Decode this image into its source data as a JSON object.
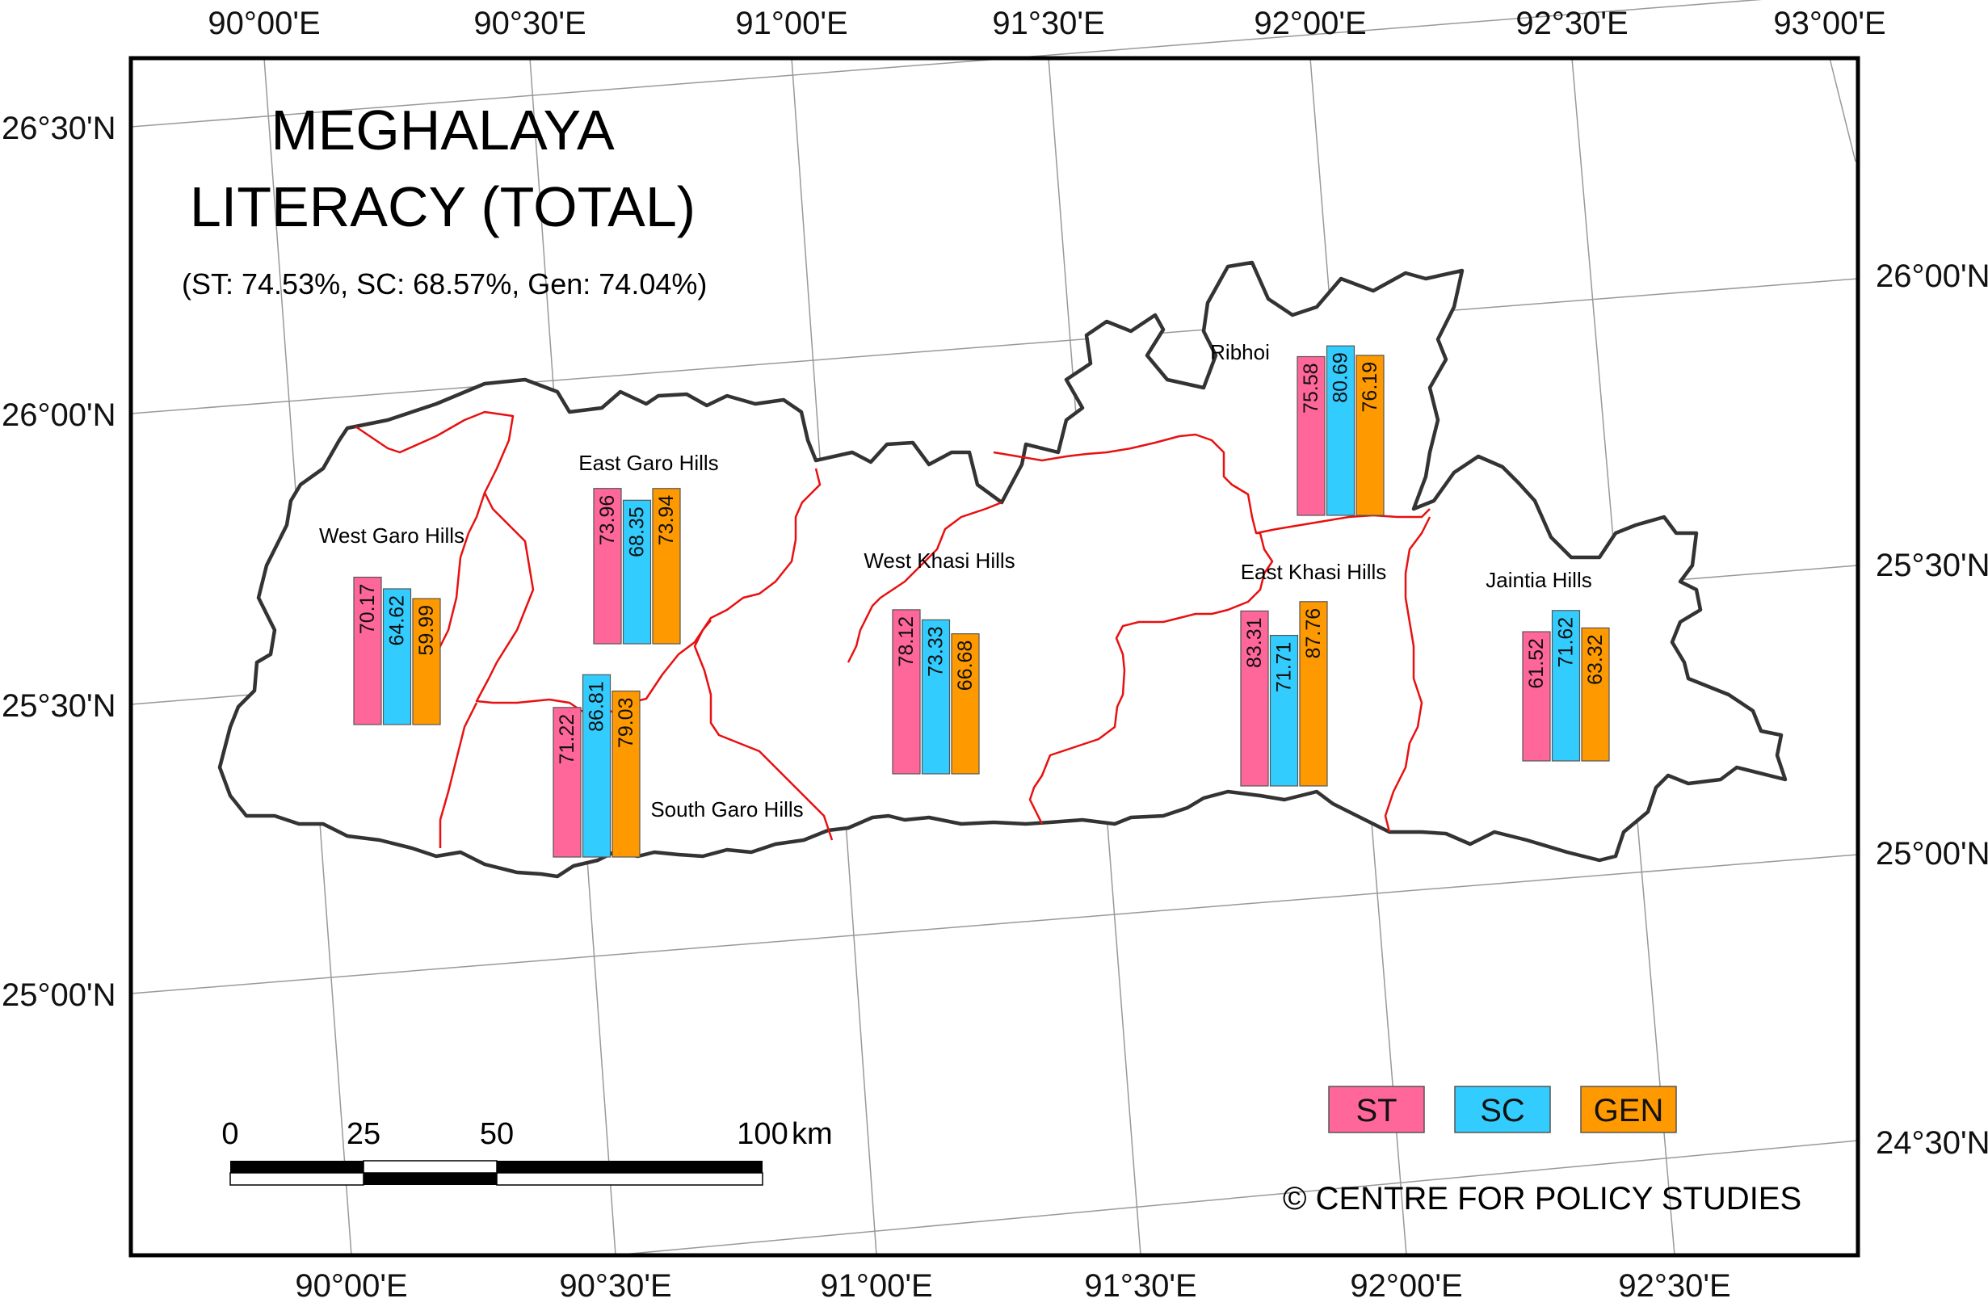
{
  "map": {
    "title_line1": "MEGHALAYA",
    "title_line2": "LITERACY (TOTAL)",
    "subtitle": "(ST: 74.53%, SC: 68.57%, Gen: 74.04%)",
    "credit": "© CENTRE FOR POLICY STUDIES"
  },
  "top_longitudes": [
    "90°00'E",
    "90°30'E",
    "91°00'E",
    "91°30'E",
    "92°00'E",
    "92°30'E",
    "93°00'E"
  ],
  "bottom_longitudes": [
    "90°00'E",
    "90°30'E",
    "91°00'E",
    "91°30'E",
    "92°00'E",
    "92°30'E"
  ],
  "left_latitudes": [
    "26°30'N",
    "26°00'N",
    "25°30'N",
    "25°00'N"
  ],
  "right_latitudes": [
    "26°00'N",
    "25°30'N",
    "25°00'N",
    "24°30'N"
  ],
  "legend": [
    {
      "label": "ST",
      "color": "#ff6699"
    },
    {
      "label": "SC",
      "color": "#33ccff"
    },
    {
      "label": "GEN",
      "color": "#ff9900"
    }
  ],
  "scale_bar": {
    "labels": [
      "0",
      "25",
      "50",
      "100"
    ],
    "unit": "km"
  },
  "districts": [
    {
      "name": "West Garo Hills",
      "st": "70.17",
      "sc": "64.62",
      "gen": "59.99"
    },
    {
      "name": "East Garo Hills",
      "st": "73.96",
      "sc": "68.35",
      "gen": "73.94"
    },
    {
      "name": "South Garo Hills",
      "st": "71.22",
      "sc": "86.81",
      "gen": "79.03"
    },
    {
      "name": "West Khasi Hills",
      "st": "78.12",
      "sc": "73.33",
      "gen": "66.68"
    },
    {
      "name": "Ribhoi",
      "st": "75.58",
      "sc": "80.69",
      "gen": "76.19"
    },
    {
      "name": "East Khasi Hills",
      "st": "83.31",
      "sc": "71.71",
      "gen": "87.76"
    },
    {
      "name": "Jaintia Hills",
      "st": "61.52",
      "sc": "71.62",
      "gen": "63.32"
    }
  ]
}
